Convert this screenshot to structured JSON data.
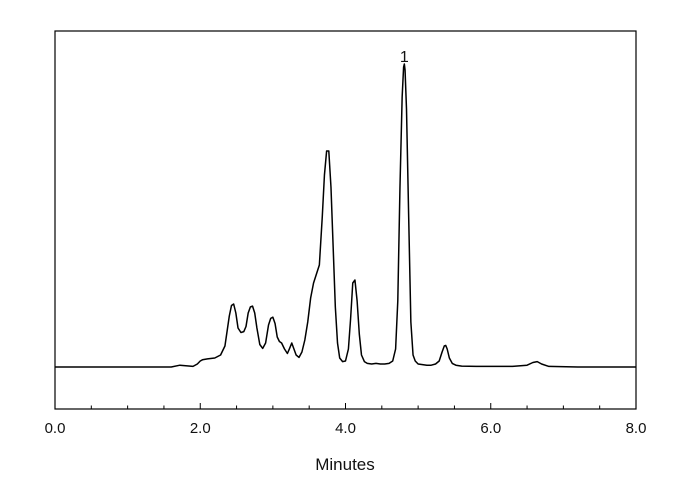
{
  "chart_data": {
    "type": "line",
    "title": "",
    "xlabel": "Minutes",
    "ylabel": "",
    "xlim": [
      0.0,
      8.0
    ],
    "ylim": [
      -0.14,
      1.12
    ],
    "x_ticks": [
      0,
      2,
      4,
      6,
      8
    ],
    "x_tick_labels": [
      "0.0",
      "2.0",
      "4.0",
      "6.0",
      "8.0"
    ],
    "y_ticks_shown": false,
    "grid": false,
    "legend": "none",
    "line_color": "#000000",
    "annotations": [
      {
        "text": "1",
        "x": 4.81,
        "y": 1.03
      }
    ],
    "series": [
      {
        "x": [
          0.0,
          1.6,
          1.72,
          1.8,
          1.9,
          1.96,
          2.0,
          2.03,
          2.1,
          2.2,
          2.28,
          2.34,
          2.4,
          2.43,
          2.46,
          2.49,
          2.52,
          2.56,
          2.6,
          2.63,
          2.66,
          2.69,
          2.72,
          2.75,
          2.78,
          2.82,
          2.86,
          2.9,
          2.94,
          2.97,
          3.0,
          3.03,
          3.06,
          3.09,
          3.12,
          3.16,
          3.2,
          3.23,
          3.26,
          3.29,
          3.32,
          3.36,
          3.4,
          3.44,
          3.48,
          3.52,
          3.56,
          3.6,
          3.64,
          3.68,
          3.71,
          3.74,
          3.77,
          3.8,
          3.83,
          3.86,
          3.89,
          3.92,
          3.96,
          4.0,
          4.04,
          4.07,
          4.1,
          4.13,
          4.16,
          4.19,
          4.22,
          4.26,
          4.3,
          4.36,
          4.42,
          4.48,
          4.54,
          4.6,
          4.65,
          4.69,
          4.72,
          4.75,
          4.78,
          4.8,
          4.81,
          4.82,
          4.84,
          4.87,
          4.9,
          4.93,
          4.96,
          5.0,
          5.06,
          5.12,
          5.18,
          5.24,
          5.29,
          5.33,
          5.36,
          5.38,
          5.4,
          5.43,
          5.47,
          5.52,
          5.6,
          5.8,
          6.0,
          6.3,
          6.5,
          6.58,
          6.64,
          6.7,
          6.8,
          7.2,
          8.0
        ],
        "y": [
          0.0,
          0.0,
          0.006,
          0.004,
          0.002,
          0.01,
          0.02,
          0.024,
          0.027,
          0.03,
          0.04,
          0.07,
          0.17,
          0.205,
          0.21,
          0.18,
          0.13,
          0.115,
          0.118,
          0.135,
          0.18,
          0.2,
          0.203,
          0.18,
          0.13,
          0.075,
          0.062,
          0.08,
          0.14,
          0.162,
          0.166,
          0.145,
          0.1,
          0.085,
          0.08,
          0.06,
          0.045,
          0.062,
          0.08,
          0.06,
          0.04,
          0.032,
          0.05,
          0.09,
          0.15,
          0.23,
          0.28,
          0.31,
          0.34,
          0.5,
          0.64,
          0.72,
          0.72,
          0.6,
          0.4,
          0.2,
          0.08,
          0.03,
          0.018,
          0.02,
          0.06,
          0.16,
          0.28,
          0.29,
          0.22,
          0.11,
          0.04,
          0.018,
          0.012,
          0.01,
          0.012,
          0.01,
          0.01,
          0.012,
          0.02,
          0.06,
          0.22,
          0.6,
          0.9,
          1.0,
          1.01,
          0.99,
          0.86,
          0.5,
          0.15,
          0.04,
          0.02,
          0.01,
          0.008,
          0.006,
          0.006,
          0.01,
          0.02,
          0.05,
          0.07,
          0.072,
          0.06,
          0.03,
          0.012,
          0.006,
          0.003,
          0.002,
          0.002,
          0.002,
          0.006,
          0.015,
          0.018,
          0.01,
          0.002,
          0.0,
          0.0
        ]
      }
    ]
  }
}
